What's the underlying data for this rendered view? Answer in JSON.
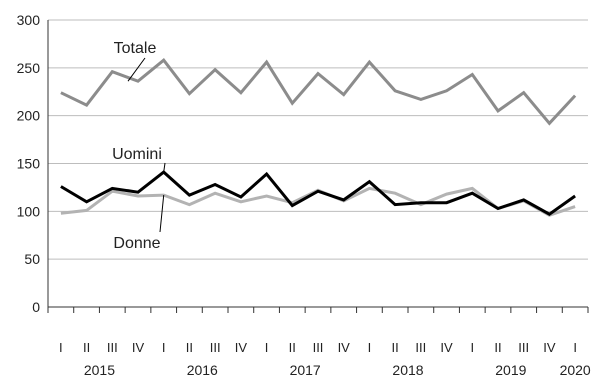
{
  "chart_data": {
    "type": "line",
    "title": "",
    "xlabel": "",
    "ylabel": "",
    "ylim": [
      0,
      300
    ],
    "yticks": [
      0,
      50,
      100,
      150,
      200,
      250,
      300
    ],
    "grid": "horizontal",
    "legend": "none",
    "quarters": [
      "I",
      "II",
      "III",
      "IV",
      "I",
      "II",
      "III",
      "IV",
      "I",
      "II",
      "III",
      "IV",
      "I",
      "II",
      "III",
      "IV",
      "I",
      "II",
      "III",
      "IV",
      "I"
    ],
    "years": [
      {
        "label": "2015",
        "quarter_index": 1.5
      },
      {
        "label": "2016",
        "quarter_index": 5.5
      },
      {
        "label": "2017",
        "quarter_index": 9.5
      },
      {
        "label": "2018",
        "quarter_index": 13.5
      },
      {
        "label": "2019",
        "quarter_index": 17.5
      },
      {
        "label": "2020",
        "quarter_index": 20
      }
    ],
    "series": [
      {
        "name": "Totale",
        "color": "#8c8c8c",
        "width": 3,
        "values": [
          224,
          211,
          246,
          236,
          258,
          223,
          248,
          224,
          256,
          213,
          244,
          222,
          256,
          226,
          217,
          226,
          243,
          205,
          224,
          192,
          221
        ]
      },
      {
        "name": "Uomini",
        "color": "#000000",
        "width": 3,
        "values": [
          126,
          110,
          124,
          120,
          141,
          117,
          128,
          115,
          139,
          106,
          121,
          112,
          131,
          107,
          109,
          109,
          119,
          103,
          112,
          97,
          116
        ]
      },
      {
        "name": "Donne",
        "color": "#b3b3b3",
        "width": 3,
        "values": [
          98,
          101,
          121,
          116,
          117,
          107,
          119,
          110,
          116,
          109,
          122,
          111,
          124,
          119,
          107,
          118,
          124,
          103,
          111,
          96,
          105
        ]
      }
    ],
    "annotations": [
      {
        "text": "Totale",
        "series": "Totale"
      },
      {
        "text": "Uomini",
        "series": "Uomini"
      },
      {
        "text": "Donne",
        "series": "Donne"
      }
    ]
  }
}
